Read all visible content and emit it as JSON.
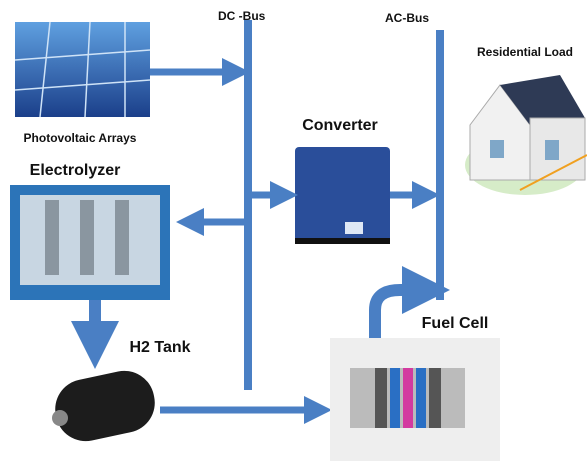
{
  "labels": {
    "dc_bus": "DC -Bus",
    "ac_bus": "AC-Bus",
    "residential_load": "Residential Load",
    "photovoltaic": "Photovoltaic Arrays",
    "converter": "Converter",
    "electrolyzer": "Electrolyzer",
    "h2_tank": "H2 Tank",
    "fuel_cell": "Fuel Cell"
  }
}
